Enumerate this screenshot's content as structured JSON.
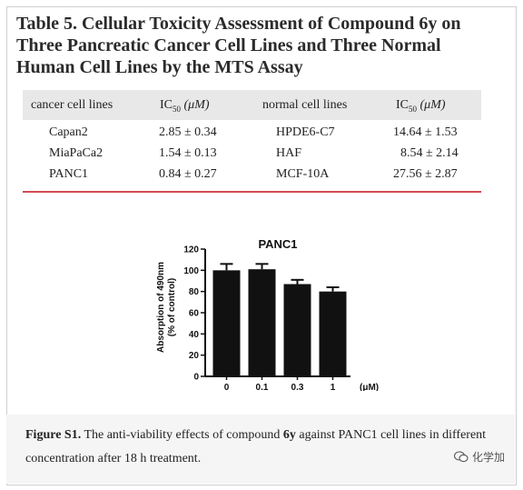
{
  "table": {
    "title_line1": "Table 5. Cellular Toxicity Assessment of Compound 6y on",
    "title_line2": "Three Pancreatic Cancer Cell Lines and Three Normal",
    "title_line3": "Human Cell Lines by the MTS Assay",
    "headers": [
      "cancer cell lines",
      "IC",
      "50",
      " (μM)",
      "normal cell lines",
      "IC",
      "50",
      " (μM)"
    ],
    "rows": [
      [
        "Capan2",
        "2.85 ± 0.34",
        "HPDE6-C7",
        "14.64 ± 1.53"
      ],
      [
        "MiaPaCa2",
        "1.54 ± 0.13",
        "HAF",
        "8.54 ± 2.14"
      ],
      [
        "PANC1",
        "0.84 ± 0.27",
        "MCF-10A",
        "27.56 ± 2.87"
      ]
    ]
  },
  "chart_data": {
    "type": "bar",
    "title": "PANC1",
    "ylabel_line1": "Absorption of 490nm",
    "ylabel_line2": "(% of control)",
    "xunit": "(μM)",
    "categories": [
      "0",
      "0.1",
      "0.3",
      "1"
    ],
    "values": [
      100,
      101,
      87,
      80
    ],
    "errors": [
      6,
      5,
      4,
      4
    ],
    "ylim": [
      0,
      120
    ],
    "yticks": [
      "0",
      "20",
      "40",
      "60",
      "80",
      "100",
      "120"
    ],
    "bar_color": "#111111"
  },
  "caption": {
    "fig_label": "Figure S1.",
    "text_a": " The anti-viability effects of compound ",
    "compound": "6y",
    "text_b": " against PANC1 cell lines in different concentration after 18 h treatment."
  },
  "watermark": {
    "text": "化学加",
    "icon": "wechat-icon"
  },
  "colors": {
    "rule": "#d34a54",
    "header_bg": "#e8e8e8"
  }
}
